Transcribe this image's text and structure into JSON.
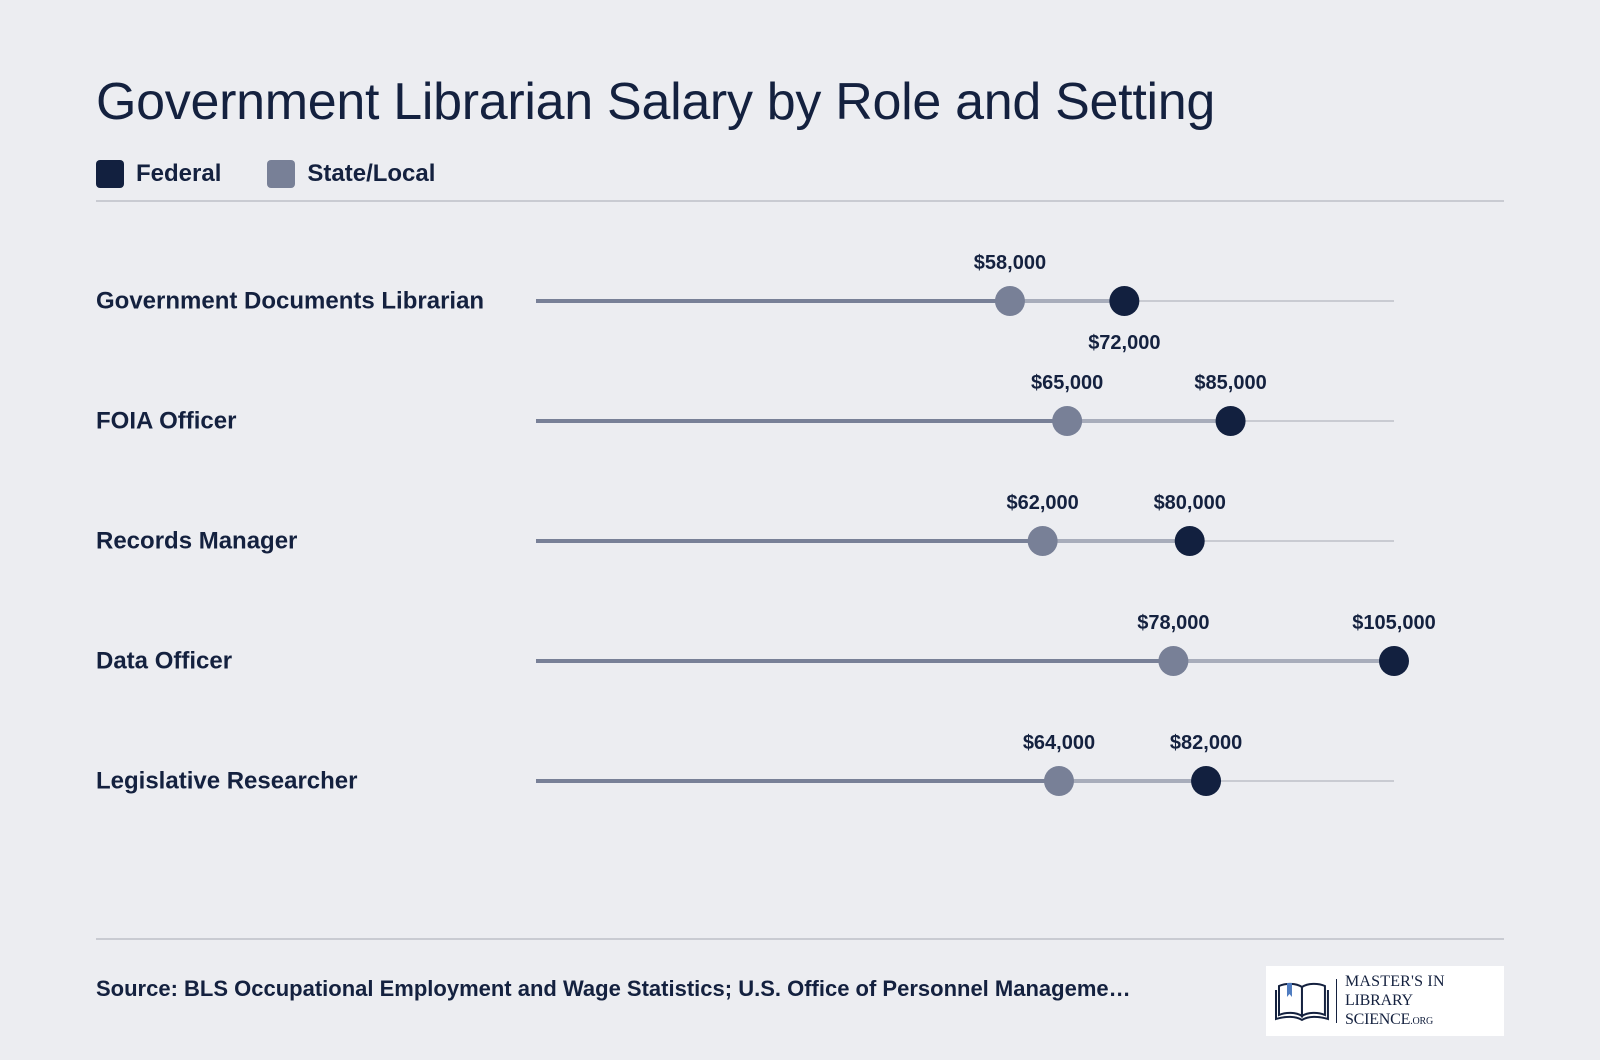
{
  "title": "Government Librarian Salary by Role and Setting",
  "legend": [
    {
      "label": "Federal",
      "color": "#12203f"
    },
    {
      "label": "State/Local",
      "color": "#788097"
    }
  ],
  "chart_data": {
    "type": "dumbbell",
    "title": "Government Librarian Salary by Role and Setting",
    "categories": [
      "Government Documents Librarian",
      "FOIA Officer",
      "Records Manager",
      "Data Officer",
      "Legislative Researcher"
    ],
    "series": [
      {
        "name": "State/Local",
        "values": [
          58000,
          65000,
          62000,
          78000,
          64000
        ],
        "labels": [
          "$58,000",
          "$65,000",
          "$62,000",
          "$78,000",
          "$64,000"
        ]
      },
      {
        "name": "Federal",
        "values": [
          72000,
          85000,
          80000,
          105000,
          82000
        ],
        "labels": [
          "$72,000",
          "$85,000",
          "$80,000",
          "$105,000",
          "$82,000"
        ]
      }
    ],
    "xlim": [
      0,
      105000
    ],
    "grid": false,
    "legend_position": "top-left"
  },
  "source": "Source: BLS Occupational Employment and Wage Statistics; U.S. Office of Personnel Manageme…",
  "logo": {
    "line1": "MASTER'S IN",
    "line2": "LIBRARY SCIENCE",
    "suffix": ".ORG"
  }
}
